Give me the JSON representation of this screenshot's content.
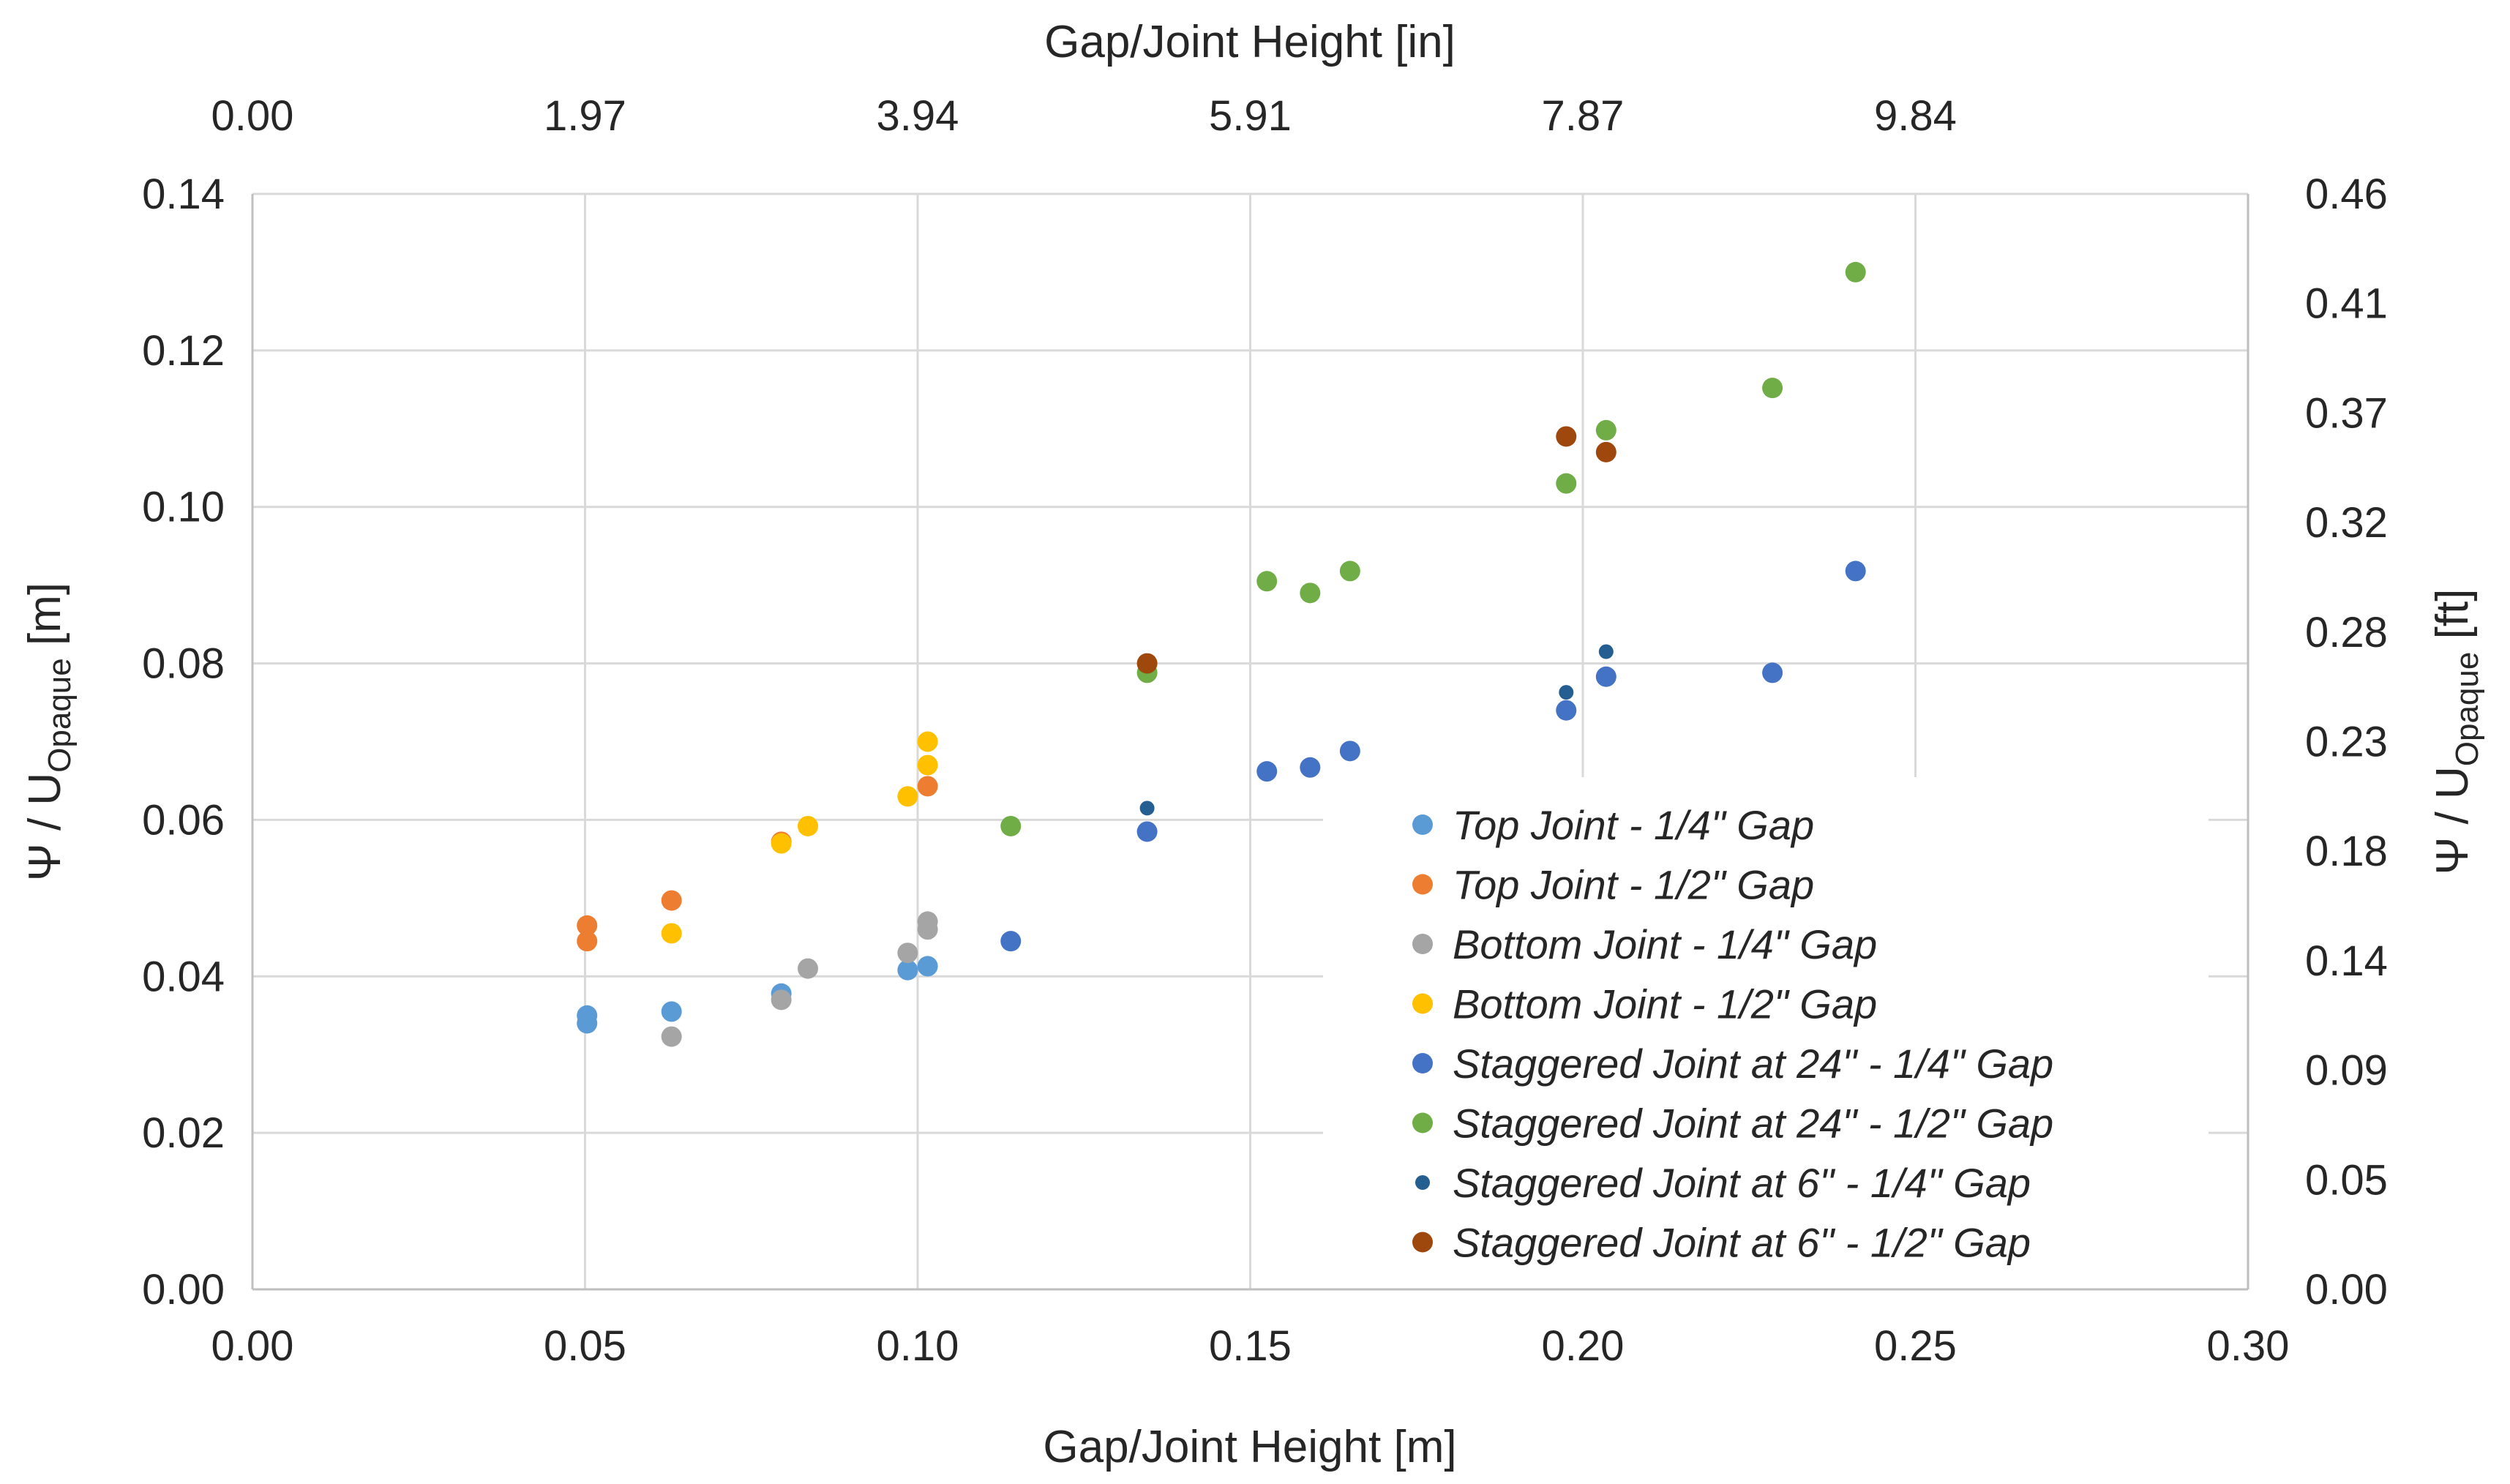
{
  "chart_data": {
    "type": "scatter",
    "xlabel_bottom": "Gap/Joint Height [m]",
    "xlabel_top": "Gap/Joint Height [in]",
    "ylabel_left_main": "Ψ / U",
    "ylabel_left_sub": "Opaque",
    "ylabel_left_unit": " [m]",
    "ylabel_right_main": "Ψ / U",
    "ylabel_right_sub": "Opaque",
    "ylabel_right_unit": " [ft]",
    "xlim": [
      0,
      0.3
    ],
    "ylim": [
      0,
      0.14
    ],
    "grid": true,
    "legend_position": "right-center",
    "x_ticks": [
      "0.00",
      "0.05",
      "0.10",
      "0.15",
      "0.20",
      "0.25",
      "0.30"
    ],
    "y_ticks": [
      "0.00",
      "0.02",
      "0.04",
      "0.06",
      "0.08",
      "0.10",
      "0.12",
      "0.14"
    ],
    "top_ticks": [
      "0.00",
      "1.97",
      "3.94",
      "5.91",
      "7.87",
      "9.84"
    ],
    "right_ticks": [
      "0.00",
      "0.05",
      "0.09",
      "0.14",
      "0.18",
      "0.23",
      "0.28",
      "0.32",
      "0.37",
      "0.41",
      "0.46"
    ],
    "series": [
      {
        "name": "Top Joint - 1/4\" Gap",
        "color": "#5b9bd5",
        "marker_size": "normal",
        "points": [
          [
            0.0503,
            0.035
          ],
          [
            0.0503,
            0.034
          ],
          [
            0.063,
            0.0355
          ],
          [
            0.0795,
            0.0378
          ],
          [
            0.0985,
            0.0408
          ],
          [
            0.1015,
            0.0413
          ]
        ]
      },
      {
        "name": "Top Joint - 1/2\" Gap",
        "color": "#ed7d31",
        "marker_size": "normal",
        "points": [
          [
            0.0503,
            0.0465
          ],
          [
            0.0503,
            0.0445
          ],
          [
            0.063,
            0.0497
          ],
          [
            0.0795,
            0.0572
          ],
          [
            0.1015,
            0.0643
          ]
        ]
      },
      {
        "name": "Bottom Joint - 1/4\" Gap",
        "color": "#a5a5a5",
        "marker_size": "normal",
        "points": [
          [
            0.063,
            0.0323
          ],
          [
            0.0795,
            0.037
          ],
          [
            0.0835,
            0.041
          ],
          [
            0.0985,
            0.043
          ],
          [
            0.1015,
            0.047
          ],
          [
            0.1015,
            0.046
          ]
        ]
      },
      {
        "name": "Bottom Joint - 1/2\" Gap",
        "color": "#ffc000",
        "marker_size": "normal",
        "points": [
          [
            0.063,
            0.0455
          ],
          [
            0.0795,
            0.057
          ],
          [
            0.0835,
            0.0592
          ],
          [
            0.0985,
            0.063
          ],
          [
            0.1015,
            0.07
          ],
          [
            0.1015,
            0.067
          ]
        ]
      },
      {
        "name": "Staggered Joint at 24\" - 1/4\" Gap",
        "color": "#4472c4",
        "marker_size": "normal",
        "points": [
          [
            0.114,
            0.0445
          ],
          [
            0.1345,
            0.0585
          ],
          [
            0.1525,
            0.0662
          ],
          [
            0.159,
            0.0667
          ],
          [
            0.165,
            0.0688
          ],
          [
            0.1975,
            0.074
          ],
          [
            0.2035,
            0.0783
          ],
          [
            0.2285,
            0.0788
          ],
          [
            0.241,
            0.0918
          ]
        ]
      },
      {
        "name": "Staggered Joint at 24\" - 1/2\" Gap",
        "color": "#70ad47",
        "marker_size": "normal",
        "points": [
          [
            0.114,
            0.0592
          ],
          [
            0.1345,
            0.0788
          ],
          [
            0.1525,
            0.0905
          ],
          [
            0.159,
            0.089
          ],
          [
            0.165,
            0.0918
          ],
          [
            0.1975,
            0.103
          ],
          [
            0.2035,
            0.1098
          ],
          [
            0.2285,
            0.1152
          ],
          [
            0.241,
            0.13
          ]
        ]
      },
      {
        "name": "Staggered Joint at 6\" - 1/4\" Gap",
        "color": "#255e91",
        "marker_size": "small",
        "points": [
          [
            0.1345,
            0.0615
          ],
          [
            0.1975,
            0.0763
          ],
          [
            0.2035,
            0.0815
          ]
        ]
      },
      {
        "name": "Staggered Joint at 6\" - 1/2\" Gap",
        "color": "#9e480e",
        "marker_size": "normal",
        "points": [
          [
            0.1345,
            0.08
          ],
          [
            0.1975,
            0.109
          ],
          [
            0.2035,
            0.107
          ]
        ]
      }
    ]
  }
}
